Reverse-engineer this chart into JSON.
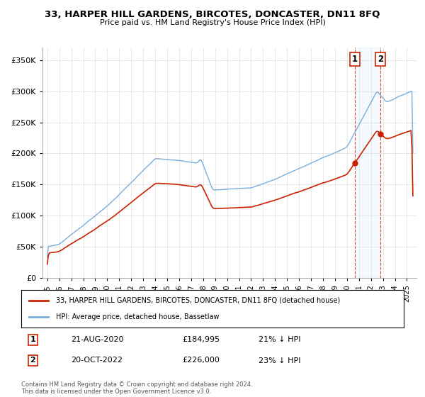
{
  "title": "33, HARPER HILL GARDENS, BIRCOTES, DONCASTER, DN11 8FQ",
  "subtitle": "Price paid vs. HM Land Registry's House Price Index (HPI)",
  "ylabel_ticks": [
    "£0",
    "£50K",
    "£100K",
    "£150K",
    "£200K",
    "£250K",
    "£300K",
    "£350K"
  ],
  "ytick_values": [
    0,
    50000,
    100000,
    150000,
    200000,
    250000,
    300000,
    350000
  ],
  "ylim": [
    0,
    370000
  ],
  "xlim_start": 1994.6,
  "xlim_end": 2025.8,
  "hpi_color": "#7aaddb",
  "price_color": "#cc2200",
  "ann1_x": 2020.64,
  "ann1_price": 184995,
  "ann2_x": 2022.8,
  "ann2_price": 226000,
  "legend_line1": "33, HARPER HILL GARDENS, BIRCOTES, DONCASTER, DN11 8FQ (detached house)",
  "legend_line2": "HPI: Average price, detached house, Bassetlaw",
  "table_rows": [
    {
      "num": "1",
      "date": "21-AUG-2020",
      "price": "£184,995",
      "pct": "21% ↓ HPI"
    },
    {
      "num": "2",
      "date": "20-OCT-2022",
      "price": "£226,000",
      "pct": "23% ↓ HPI"
    }
  ],
  "footer": "Contains HM Land Registry data © Crown copyright and database right 2024.\nThis data is licensed under the Open Government Licence v3.0.",
  "background_color": "#ffffff",
  "grid_color": "#dddddd"
}
